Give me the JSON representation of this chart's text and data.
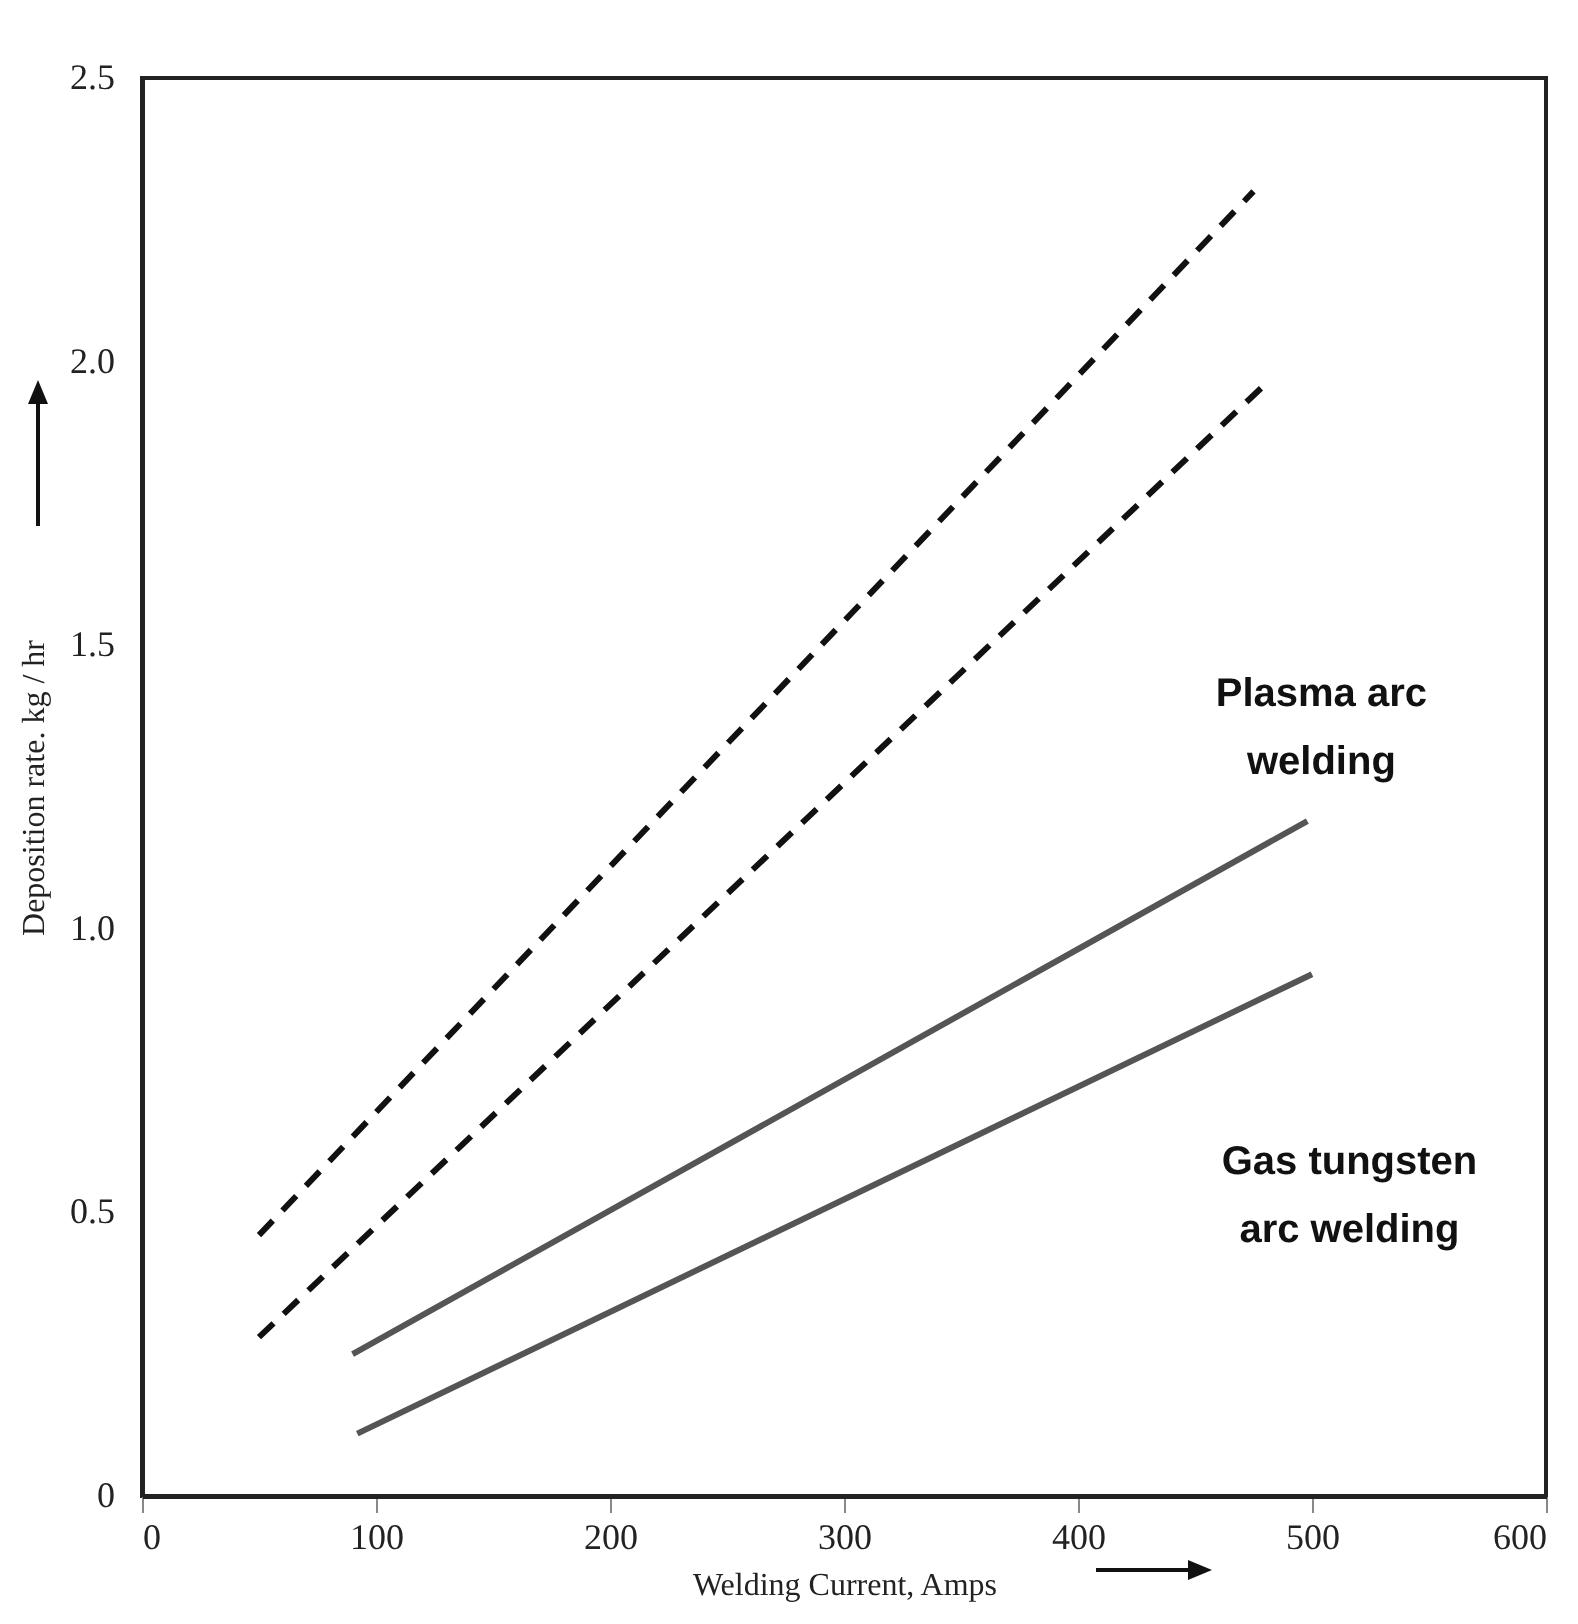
{
  "chart_data": {
    "type": "line",
    "xlabel": "Welding Current, Amps",
    "ylabel": "Deposition rate. kg / hr",
    "xlim": [
      0,
      600
    ],
    "xticks": [
      0,
      100,
      200,
      300,
      400,
      500,
      600
    ],
    "ylim": [
      0,
      2.5
    ],
    "yticks": [
      0,
      0.5,
      {
        "value": 1,
        "label": "1.0"
      },
      1.5,
      {
        "value": 2,
        "label": "2.0"
      },
      2.5
    ],
    "grid": false,
    "marker": "none",
    "series": [
      {
        "color": "#111111",
        "line_style": "dashed",
        "x": [
          50,
          475
        ],
        "values": [
          0.46,
          2.3
        ]
      },
      {
        "color": "#111111",
        "line_style": "dashed",
        "x": [
          50,
          480
        ],
        "values": [
          0.28,
          1.96
        ]
      },
      {
        "color": "#555555",
        "line_style": "solid",
        "x": [
          90,
          498
        ],
        "values": [
          0.25,
          1.19
        ]
      },
      {
        "color": "#555555",
        "line_style": "solid",
        "x": [
          92,
          500
        ],
        "values": [
          0.11,
          0.92
        ]
      }
    ],
    "annotations": [
      "Plasma arc welding",
      "Gas tungsten arc welding"
    ]
  }
}
